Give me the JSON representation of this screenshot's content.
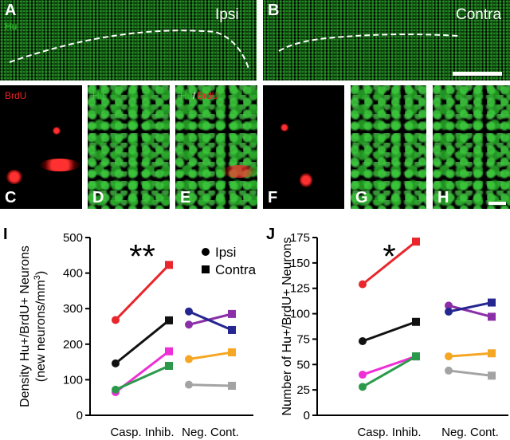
{
  "panels": {
    "A": {
      "letter": "A",
      "stain": "Hu",
      "side": "Ipsi"
    },
    "B": {
      "letter": "B",
      "side": "Contra"
    },
    "C": {
      "letter": "C",
      "stain": "BrdU"
    },
    "D": {
      "letter": "D",
      "stain": "Hu"
    },
    "E": {
      "letter": "E",
      "stain1": "Hu",
      "sep": "/",
      "stain2": "BrdU"
    },
    "F": {
      "letter": "F"
    },
    "G": {
      "letter": "G"
    },
    "H": {
      "letter": "H"
    }
  },
  "chart_data": [
    {
      "type": "paired-line",
      "panel": "I",
      "y_label": [
        "Density Hu+/BrdU+ Neurons",
        "(new neurons/mm",
        "3",
        ")"
      ],
      "categories": [
        "Casp. Inhib.",
        "Neg. Cont."
      ],
      "ylim": [
        0,
        500
      ],
      "yticks": [
        0,
        100,
        200,
        300,
        400,
        500
      ],
      "annotation": "**",
      "markers": [
        {
          "shape": "circle",
          "label": "Ipsi"
        },
        {
          "shape": "square",
          "label": "Contra"
        }
      ],
      "series": [
        {
          "color": "#e8262b",
          "group": 0,
          "values": [
            268,
            423
          ]
        },
        {
          "color": "#111111",
          "group": 0,
          "values": [
            146,
            267
          ]
        },
        {
          "color": "#ee2fd6",
          "group": 0,
          "values": [
            65,
            180
          ]
        },
        {
          "color": "#2a9a4a",
          "group": 0,
          "values": [
            72,
            139
          ]
        },
        {
          "color": "#8a2fa8",
          "group": 1,
          "values": [
            255,
            285
          ]
        },
        {
          "color": "#25268f",
          "group": 1,
          "values": [
            292,
            240
          ]
        },
        {
          "color": "#f5a623",
          "group": 1,
          "values": [
            158,
            177
          ]
        },
        {
          "color": "#a3a3a3",
          "group": 1,
          "values": [
            86,
            83
          ]
        }
      ]
    },
    {
      "type": "paired-line",
      "panel": "J",
      "y_label": [
        "Number of Hu+/BrdU+ Neurons"
      ],
      "categories": [
        "Casp. Inhib.",
        "Neg. Cont."
      ],
      "ylim": [
        0,
        175
      ],
      "yticks": [
        0,
        25,
        50,
        75,
        100,
        125,
        150,
        175
      ],
      "annotation": "*",
      "series": [
        {
          "color": "#e8262b",
          "group": 0,
          "values": [
            129,
            171
          ]
        },
        {
          "color": "#111111",
          "group": 0,
          "values": [
            73,
            92
          ]
        },
        {
          "color": "#ee2fd6",
          "group": 0,
          "values": [
            40,
            58
          ]
        },
        {
          "color": "#2a9a4a",
          "group": 0,
          "values": [
            28,
            58
          ]
        },
        {
          "color": "#8a2fa8",
          "group": 1,
          "values": [
            108,
            97
          ]
        },
        {
          "color": "#25268f",
          "group": 1,
          "values": [
            102,
            111
          ]
        },
        {
          "color": "#f5a623",
          "group": 1,
          "values": [
            58,
            61
          ]
        },
        {
          "color": "#a3a3a3",
          "group": 1,
          "values": [
            44,
            39
          ]
        }
      ]
    }
  ]
}
